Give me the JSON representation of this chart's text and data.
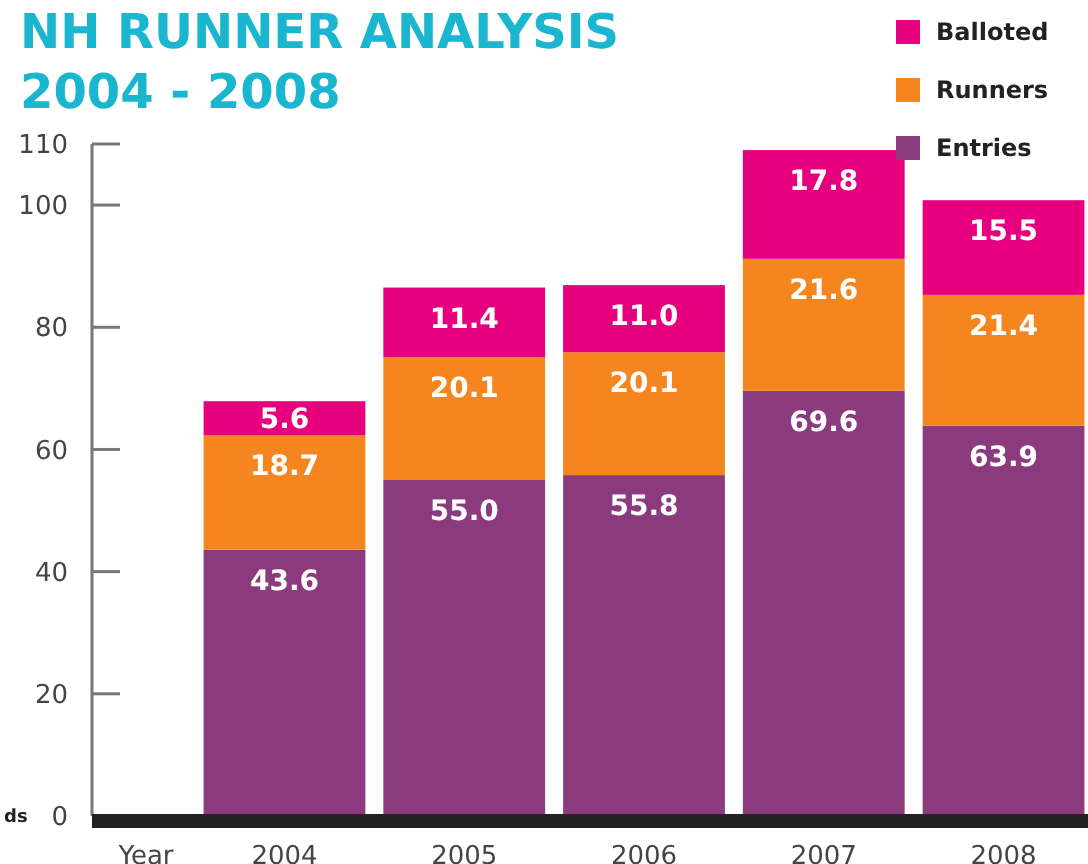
{
  "chart_data": {
    "type": "bar",
    "title": "NH RUNNER ANALYSIS\n2004 - 2008",
    "xlabel": "Year",
    "ylabel": "ds",
    "categories": [
      "2004",
      "2005",
      "2006",
      "2007",
      "2008"
    ],
    "stacked": true,
    "legend": "top right",
    "ylim": [
      0,
      110
    ],
    "yticks": [
      0,
      20,
      40,
      60,
      80,
      100,
      110
    ],
    "series": [
      {
        "name": "Entries",
        "color": "#8b3a7e",
        "values": [
          43.6,
          55.0,
          55.8,
          69.6,
          63.9
        ],
        "value_labels": [
          "43.6",
          "55.0",
          "55.8",
          "69.6",
          "63.9"
        ]
      },
      {
        "name": "Runners",
        "color": "#f5861f",
        "values": [
          18.7,
          20.1,
          20.1,
          21.6,
          21.4
        ],
        "value_labels": [
          "18.7",
          "20.1",
          "20.1",
          "21.6",
          "21.4"
        ]
      },
      {
        "name": "Balloted",
        "color": "#e6007e",
        "values": [
          5.6,
          11.4,
          11.0,
          17.8,
          15.5
        ],
        "value_labels": [
          "5.6",
          "11.4",
          "11.0",
          "17.8",
          "15.5"
        ]
      }
    ]
  }
}
